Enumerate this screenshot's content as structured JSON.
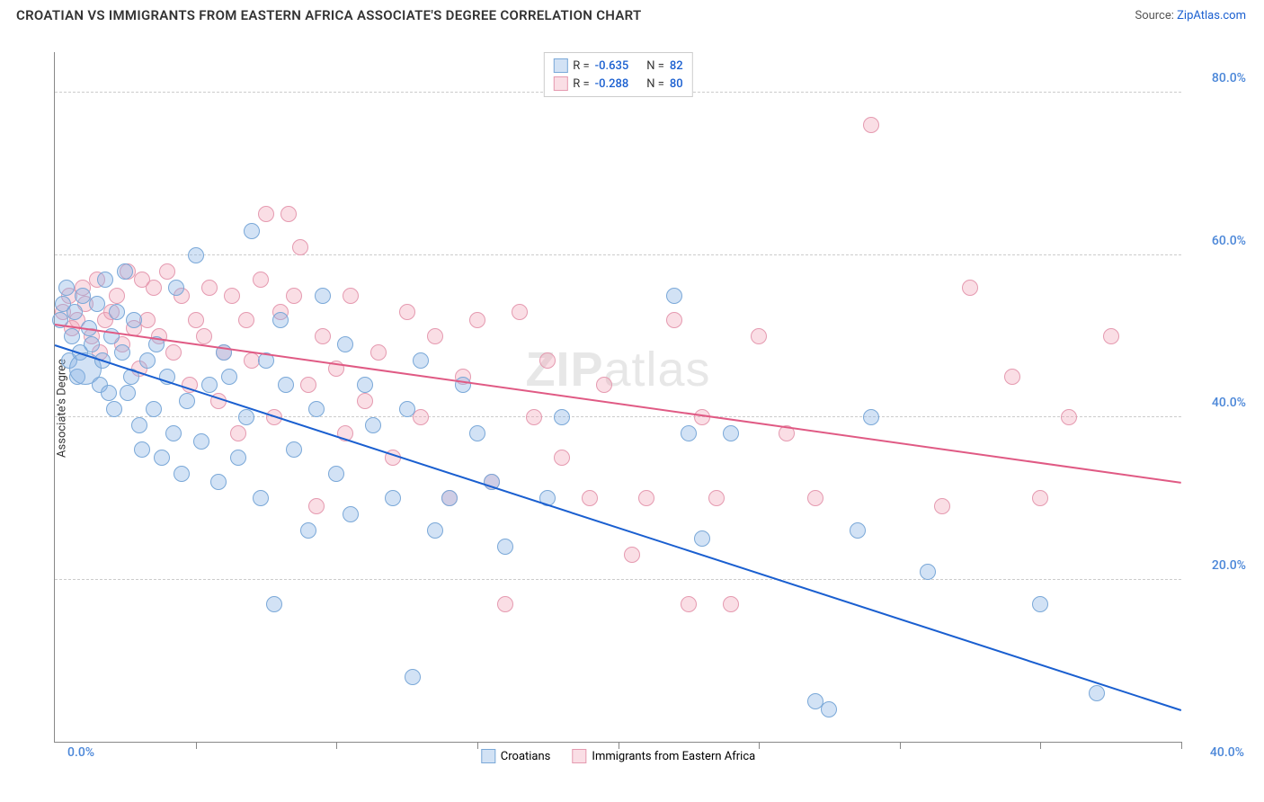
{
  "title": "CROATIAN VS IMMIGRANTS FROM EASTERN AFRICA ASSOCIATE'S DEGREE CORRELATION CHART",
  "source_label": "Source: ",
  "source_link_text": "ZipAtlas.com",
  "ylabel": "Associate's Degree",
  "watermark": {
    "bold": "ZIP",
    "rest": "atlas"
  },
  "axes": {
    "x_min": 0,
    "x_max": 40,
    "y_min": 0,
    "y_max": 85,
    "x_left_label": "0.0%",
    "x_right_label": "40.0%",
    "x_tick_positions": [
      5,
      10,
      15,
      20,
      25,
      30,
      35,
      40
    ],
    "y_gridlines": [
      20,
      40,
      60,
      80
    ],
    "y_labels": [
      {
        "val": 20,
        "text": "20.0%"
      },
      {
        "val": 40,
        "text": "40.0%"
      },
      {
        "val": 60,
        "text": "60.0%"
      },
      {
        "val": 80,
        "text": "80.0%"
      }
    ],
    "axis_label_color": "#4a86d8",
    "grid_color": "#cccccc"
  },
  "series": {
    "croatians": {
      "name": "Croatians",
      "fill": "rgba(137,180,230,0.38)",
      "stroke": "#7aa8d8",
      "line_color": "#1a5fd0",
      "R": "-0.635",
      "N": "82",
      "trend": {
        "x1": 0,
        "y1": 49,
        "x2": 40,
        "y2": 4
      },
      "marker_radius": 9
    },
    "immigrants": {
      "name": "Immigrants from Eastern Africa",
      "fill": "rgba(240,160,180,0.35)",
      "stroke": "#e59ab0",
      "line_color": "#e05a84",
      "R": "-0.288",
      "N": "80",
      "trend": {
        "x1": 0,
        "y1": 51.5,
        "x2": 40,
        "y2": 32
      },
      "marker_radius": 9
    }
  },
  "legend_top_labels": {
    "R": "R =",
    "N": "N ="
  },
  "points_croatians": [
    [
      0.2,
      52
    ],
    [
      0.3,
      54
    ],
    [
      0.4,
      56
    ],
    [
      0.5,
      47
    ],
    [
      0.6,
      50
    ],
    [
      0.7,
      53
    ],
    [
      0.8,
      45
    ],
    [
      0.9,
      48
    ],
    [
      1.0,
      55
    ],
    [
      1.1,
      46,
      18
    ],
    [
      1.2,
      51
    ],
    [
      1.3,
      49
    ],
    [
      1.5,
      54
    ],
    [
      1.6,
      44
    ],
    [
      1.7,
      47
    ],
    [
      1.8,
      57
    ],
    [
      1.9,
      43
    ],
    [
      2.0,
      50
    ],
    [
      2.1,
      41
    ],
    [
      2.2,
      53
    ],
    [
      2.4,
      48
    ],
    [
      2.5,
      58
    ],
    [
      2.6,
      43
    ],
    [
      2.7,
      45
    ],
    [
      2.8,
      52
    ],
    [
      3.0,
      39
    ],
    [
      3.1,
      36
    ],
    [
      3.3,
      47
    ],
    [
      3.5,
      41
    ],
    [
      3.6,
      49
    ],
    [
      3.8,
      35
    ],
    [
      4.0,
      45
    ],
    [
      4.2,
      38
    ],
    [
      4.3,
      56
    ],
    [
      4.5,
      33
    ],
    [
      4.7,
      42
    ],
    [
      5.0,
      60
    ],
    [
      5.2,
      37
    ],
    [
      5.5,
      44
    ],
    [
      5.8,
      32
    ],
    [
      6.0,
      48
    ],
    [
      6.2,
      45
    ],
    [
      6.5,
      35
    ],
    [
      6.8,
      40
    ],
    [
      7.0,
      63
    ],
    [
      7.3,
      30
    ],
    [
      7.5,
      47
    ],
    [
      7.8,
      17
    ],
    [
      8.0,
      52
    ],
    [
      8.2,
      44
    ],
    [
      8.5,
      36
    ],
    [
      9.0,
      26
    ],
    [
      9.3,
      41
    ],
    [
      9.5,
      55
    ],
    [
      10.0,
      33
    ],
    [
      10.3,
      49
    ],
    [
      10.5,
      28
    ],
    [
      11.0,
      44
    ],
    [
      11.3,
      39
    ],
    [
      12.0,
      30
    ],
    [
      12.5,
      41
    ],
    [
      12.7,
      8
    ],
    [
      13.0,
      47
    ],
    [
      13.5,
      26
    ],
    [
      14.0,
      30
    ],
    [
      14.5,
      44
    ],
    [
      15.0,
      38
    ],
    [
      15.5,
      32
    ],
    [
      16.0,
      24
    ],
    [
      17.5,
      30
    ],
    [
      18.0,
      40
    ],
    [
      22.0,
      55
    ],
    [
      22.5,
      38
    ],
    [
      23.0,
      25
    ],
    [
      24.0,
      38
    ],
    [
      27.0,
      5
    ],
    [
      27.5,
      4
    ],
    [
      28.5,
      26
    ],
    [
      29.0,
      40
    ],
    [
      31.0,
      21
    ],
    [
      35.0,
      17
    ],
    [
      37.0,
      6
    ]
  ],
  "points_immigrants": [
    [
      0.3,
      53
    ],
    [
      0.5,
      55
    ],
    [
      0.6,
      51
    ],
    [
      0.8,
      52
    ],
    [
      1.0,
      56
    ],
    [
      1.1,
      54
    ],
    [
      1.3,
      50
    ],
    [
      1.5,
      57
    ],
    [
      1.6,
      48
    ],
    [
      1.8,
      52
    ],
    [
      2.0,
      53
    ],
    [
      2.2,
      55
    ],
    [
      2.4,
      49
    ],
    [
      2.6,
      58
    ],
    [
      2.8,
      51
    ],
    [
      3.0,
      46
    ],
    [
      3.1,
      57
    ],
    [
      3.3,
      52
    ],
    [
      3.5,
      56
    ],
    [
      3.7,
      50
    ],
    [
      4.0,
      58
    ],
    [
      4.2,
      48
    ],
    [
      4.5,
      55
    ],
    [
      4.8,
      44
    ],
    [
      5.0,
      52
    ],
    [
      5.3,
      50
    ],
    [
      5.5,
      56
    ],
    [
      5.8,
      42
    ],
    [
      6.0,
      48
    ],
    [
      6.3,
      55
    ],
    [
      6.5,
      38
    ],
    [
      6.8,
      52
    ],
    [
      7.0,
      47
    ],
    [
      7.3,
      57
    ],
    [
      7.5,
      65
    ],
    [
      7.8,
      40
    ],
    [
      8.0,
      53
    ],
    [
      8.3,
      65
    ],
    [
      8.5,
      55
    ],
    [
      8.7,
      61
    ],
    [
      9.0,
      44
    ],
    [
      9.3,
      29
    ],
    [
      9.5,
      50
    ],
    [
      10.0,
      46
    ],
    [
      10.3,
      38
    ],
    [
      10.5,
      55
    ],
    [
      11.0,
      42
    ],
    [
      11.5,
      48
    ],
    [
      12.0,
      35
    ],
    [
      12.5,
      53
    ],
    [
      13.0,
      40
    ],
    [
      13.5,
      50
    ],
    [
      14.0,
      30
    ],
    [
      14.5,
      45
    ],
    [
      15.0,
      52
    ],
    [
      15.5,
      32
    ],
    [
      16.0,
      17
    ],
    [
      16.5,
      53
    ],
    [
      17.0,
      40
    ],
    [
      17.5,
      47
    ],
    [
      18.0,
      35
    ],
    [
      19.0,
      30
    ],
    [
      19.5,
      44
    ],
    [
      20.5,
      23
    ],
    [
      21.0,
      30
    ],
    [
      22.0,
      52
    ],
    [
      22.5,
      17
    ],
    [
      23.0,
      40
    ],
    [
      23.5,
      30
    ],
    [
      24.0,
      17
    ],
    [
      25.0,
      50
    ],
    [
      26.0,
      38
    ],
    [
      27.0,
      30
    ],
    [
      29.0,
      76
    ],
    [
      31.5,
      29
    ],
    [
      32.5,
      56
    ],
    [
      34.0,
      45
    ],
    [
      35.0,
      30
    ],
    [
      36.0,
      40
    ],
    [
      37.5,
      50
    ]
  ]
}
